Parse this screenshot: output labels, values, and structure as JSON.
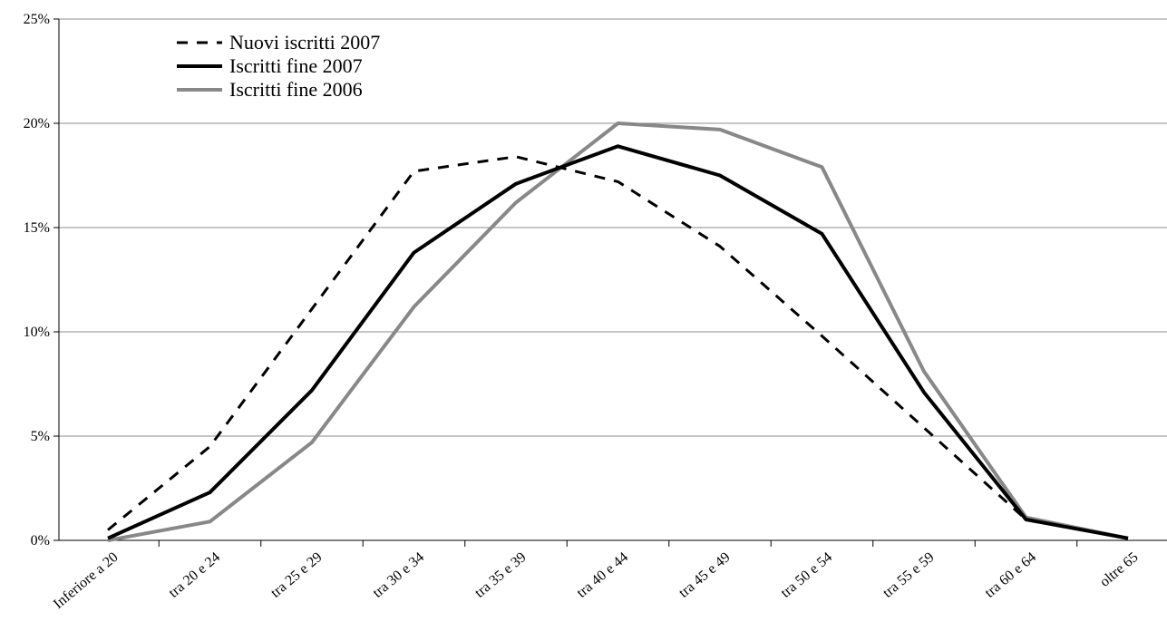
{
  "chart_data": {
    "type": "line",
    "categories": [
      "Inferiore a 20",
      "tra 20 e 24",
      "tra 25 e 29",
      "tra 30 e 34",
      "tra 35 e 39",
      "tra 40 e 44",
      "tra 45 e 49",
      "tra 50 e 54",
      "tra 55 e 59",
      "tra 60 e 64",
      "oltre 65"
    ],
    "series": [
      {
        "name": "Nuovi iscritti 2007",
        "color": "#000000",
        "dash": true,
        "values": [
          0.5,
          4.5,
          11.1,
          17.7,
          18.4,
          17.2,
          14.1,
          9.8,
          5.4,
          1.0,
          0.1
        ]
      },
      {
        "name": "Iscritti fine 2007",
        "color": "#000000",
        "dash": false,
        "values": [
          0.1,
          2.3,
          7.2,
          13.8,
          17.1,
          18.9,
          17.5,
          14.7,
          7.1,
          1.0,
          0.1
        ]
      },
      {
        "name": "Iscritti fine 2006",
        "color": "#888888",
        "dash": false,
        "values": [
          0.0,
          0.9,
          4.7,
          11.2,
          16.2,
          20.0,
          19.7,
          17.9,
          8.1,
          1.1,
          0.1
        ]
      }
    ],
    "y_ticks": [
      "0%",
      "5%",
      "10%",
      "15%",
      "20%",
      "25%"
    ],
    "ylim": [
      0,
      25
    ],
    "grid": true,
    "legend_position": "top-left",
    "title": "",
    "xlabel": "",
    "ylabel": ""
  }
}
